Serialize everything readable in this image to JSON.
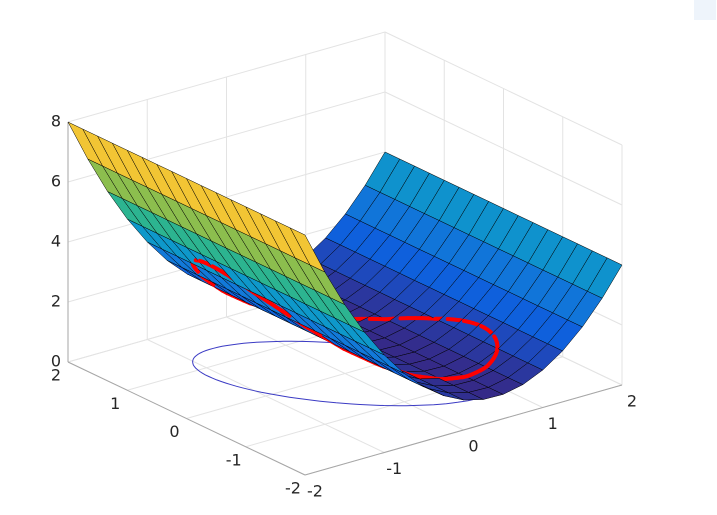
{
  "chart_data": {
    "type": "surface",
    "x": [
      -2,
      -1.75,
      -1.5,
      -1.25,
      -1,
      -0.75,
      -0.5,
      -0.25,
      0,
      0.25,
      0.5,
      0.75,
      1,
      1.25,
      1.5,
      1.75,
      2
    ],
    "y": [
      -2,
      -1.75,
      -1.5,
      -1.25,
      -1,
      -0.75,
      -0.5,
      -0.25,
      0,
      0.25,
      0.5,
      0.75,
      1,
      1.25,
      1.5,
      1.75,
      2
    ],
    "z": [
      [
        8,
        6.58,
        5.31,
        4.2,
        3.25,
        2.45,
        1.81,
        1.33,
        1,
        0.83,
        0.81,
        0.95,
        1.25,
        1.7,
        2.31,
        3.08,
        4
      ],
      [
        8,
        6.58,
        5.31,
        4.2,
        3.25,
        2.45,
        1.81,
        1.33,
        1,
        0.83,
        0.81,
        0.95,
        1.25,
        1.7,
        2.31,
        3.08,
        4
      ],
      [
        8,
        6.58,
        5.31,
        4.2,
        3.25,
        2.45,
        1.81,
        1.33,
        1,
        0.83,
        0.81,
        0.95,
        1.25,
        1.7,
        2.31,
        3.08,
        4
      ],
      [
        8,
        6.58,
        5.31,
        4.2,
        3.25,
        2.45,
        1.81,
        1.33,
        1,
        0.83,
        0.81,
        0.95,
        1.25,
        1.7,
        2.31,
        3.08,
        4
      ],
      [
        8,
        6.58,
        5.31,
        4.2,
        3.25,
        2.45,
        1.81,
        1.33,
        1,
        0.83,
        0.81,
        0.95,
        1.25,
        1.7,
        2.31,
        3.08,
        4
      ],
      [
        8,
        6.58,
        5.31,
        4.2,
        3.25,
        2.45,
        1.81,
        1.33,
        1,
        0.83,
        0.81,
        0.95,
        1.25,
        1.7,
        2.31,
        3.08,
        4
      ],
      [
        8,
        6.58,
        5.31,
        4.2,
        3.25,
        2.45,
        1.81,
        1.33,
        1,
        0.83,
        0.81,
        0.95,
        1.25,
        1.7,
        2.31,
        3.08,
        4
      ],
      [
        8,
        6.58,
        5.31,
        4.2,
        3.25,
        2.45,
        1.81,
        1.33,
        1,
        0.83,
        0.81,
        0.95,
        1.25,
        1.7,
        2.31,
        3.08,
        4
      ],
      [
        8,
        6.58,
        5.31,
        4.2,
        3.25,
        2.45,
        1.81,
        1.33,
        1,
        0.83,
        0.81,
        0.95,
        1.25,
        1.7,
        2.31,
        3.08,
        4
      ],
      [
        8,
        6.58,
        5.31,
        4.2,
        3.25,
        2.45,
        1.81,
        1.33,
        1,
        0.83,
        0.81,
        0.95,
        1.25,
        1.7,
        2.31,
        3.08,
        4
      ],
      [
        8,
        6.58,
        5.31,
        4.2,
        3.25,
        2.45,
        1.81,
        1.33,
        1,
        0.83,
        0.81,
        0.95,
        1.25,
        1.7,
        2.31,
        3.08,
        4
      ],
      [
        8,
        6.58,
        5.31,
        4.2,
        3.25,
        2.45,
        1.81,
        1.33,
        1,
        0.83,
        0.81,
        0.95,
        1.25,
        1.7,
        2.31,
        3.08,
        4
      ],
      [
        8,
        6.58,
        5.31,
        4.2,
        3.25,
        2.45,
        1.81,
        1.33,
        1,
        0.83,
        0.81,
        0.95,
        1.25,
        1.7,
        2.31,
        3.08,
        4
      ],
      [
        8,
        6.58,
        5.31,
        4.2,
        3.25,
        2.45,
        1.81,
        1.33,
        1,
        0.83,
        0.81,
        0.95,
        1.25,
        1.7,
        2.31,
        3.08,
        4
      ],
      [
        8,
        6.58,
        5.31,
        4.2,
        3.25,
        2.45,
        1.81,
        1.33,
        1,
        0.83,
        0.81,
        0.95,
        1.25,
        1.7,
        2.31,
        3.08,
        4
      ],
      [
        8,
        6.58,
        5.31,
        4.2,
        3.25,
        2.45,
        1.81,
        1.33,
        1,
        0.83,
        0.81,
        0.95,
        1.25,
        1.7,
        2.31,
        3.08,
        4
      ],
      [
        8,
        6.58,
        5.31,
        4.2,
        3.25,
        2.45,
        1.81,
        1.33,
        1,
        0.83,
        0.81,
        0.95,
        1.25,
        1.7,
        2.31,
        3.08,
        4
      ]
    ],
    "colormap": "parula",
    "edge_color": "#000000",
    "xlim": [
      -2,
      2
    ],
    "ylim": [
      -2,
      2
    ],
    "zlim": [
      0,
      8
    ],
    "xticks": [
      -2,
      -1,
      0,
      1,
      2
    ],
    "yticks": [
      -2,
      -1,
      0,
      1,
      2
    ],
    "zticks": [
      0,
      2,
      4,
      6,
      8
    ],
    "grid": true,
    "curve": {
      "center": [
        0,
        0
      ],
      "semi_axes": [
        1.6,
        0.8
      ],
      "angle": -55,
      "color": "#ff0000",
      "floor_color": "#3b3bc4"
    },
    "point": {
      "x": 0.75,
      "y": -0.21,
      "z": 0,
      "color": "#e3262b"
    }
  }
}
